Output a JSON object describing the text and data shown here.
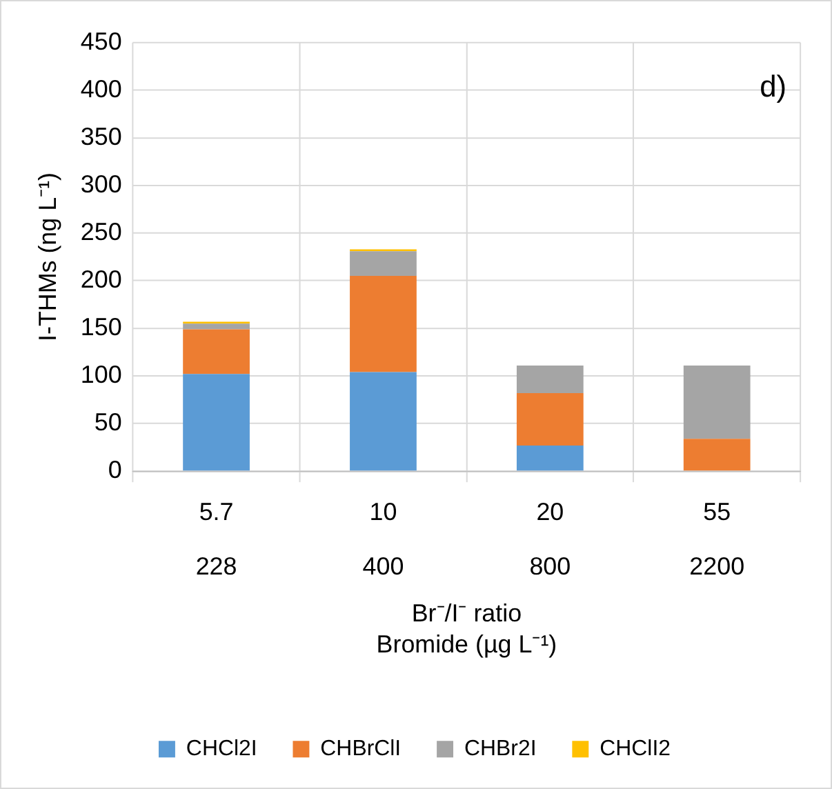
{
  "chart_data": {
    "type": "bar",
    "stacked": true,
    "categories": [
      "5.7\n228",
      "10\n400",
      "20\n800",
      "55\n2200"
    ],
    "series": [
      {
        "name": "CHCl2I",
        "color": "#5b9bd5",
        "values": [
          102,
          104,
          27,
          0
        ]
      },
      {
        "name": "CHBrClI",
        "color": "#ed7d31",
        "values": [
          47,
          101,
          55,
          34
        ]
      },
      {
        "name": "CHBr2I",
        "color": "#a5a5a5",
        "values": [
          6,
          26,
          29,
          77
        ]
      },
      {
        "name": "CHClI2",
        "color": "#ffc000",
        "values": [
          2,
          2,
          0,
          0
        ]
      }
    ],
    "xlabel": "Br⁻/I⁻ ratio\nBromide (µg L⁻¹)",
    "ylabel": "I-THMs (ng L⁻¹)",
    "ylim": [
      0,
      450
    ],
    "yticks": [
      0,
      50,
      100,
      150,
      200,
      250,
      300,
      350,
      400,
      450
    ],
    "grid": true,
    "legend": "bottom",
    "annotations": [
      "d)"
    ]
  }
}
